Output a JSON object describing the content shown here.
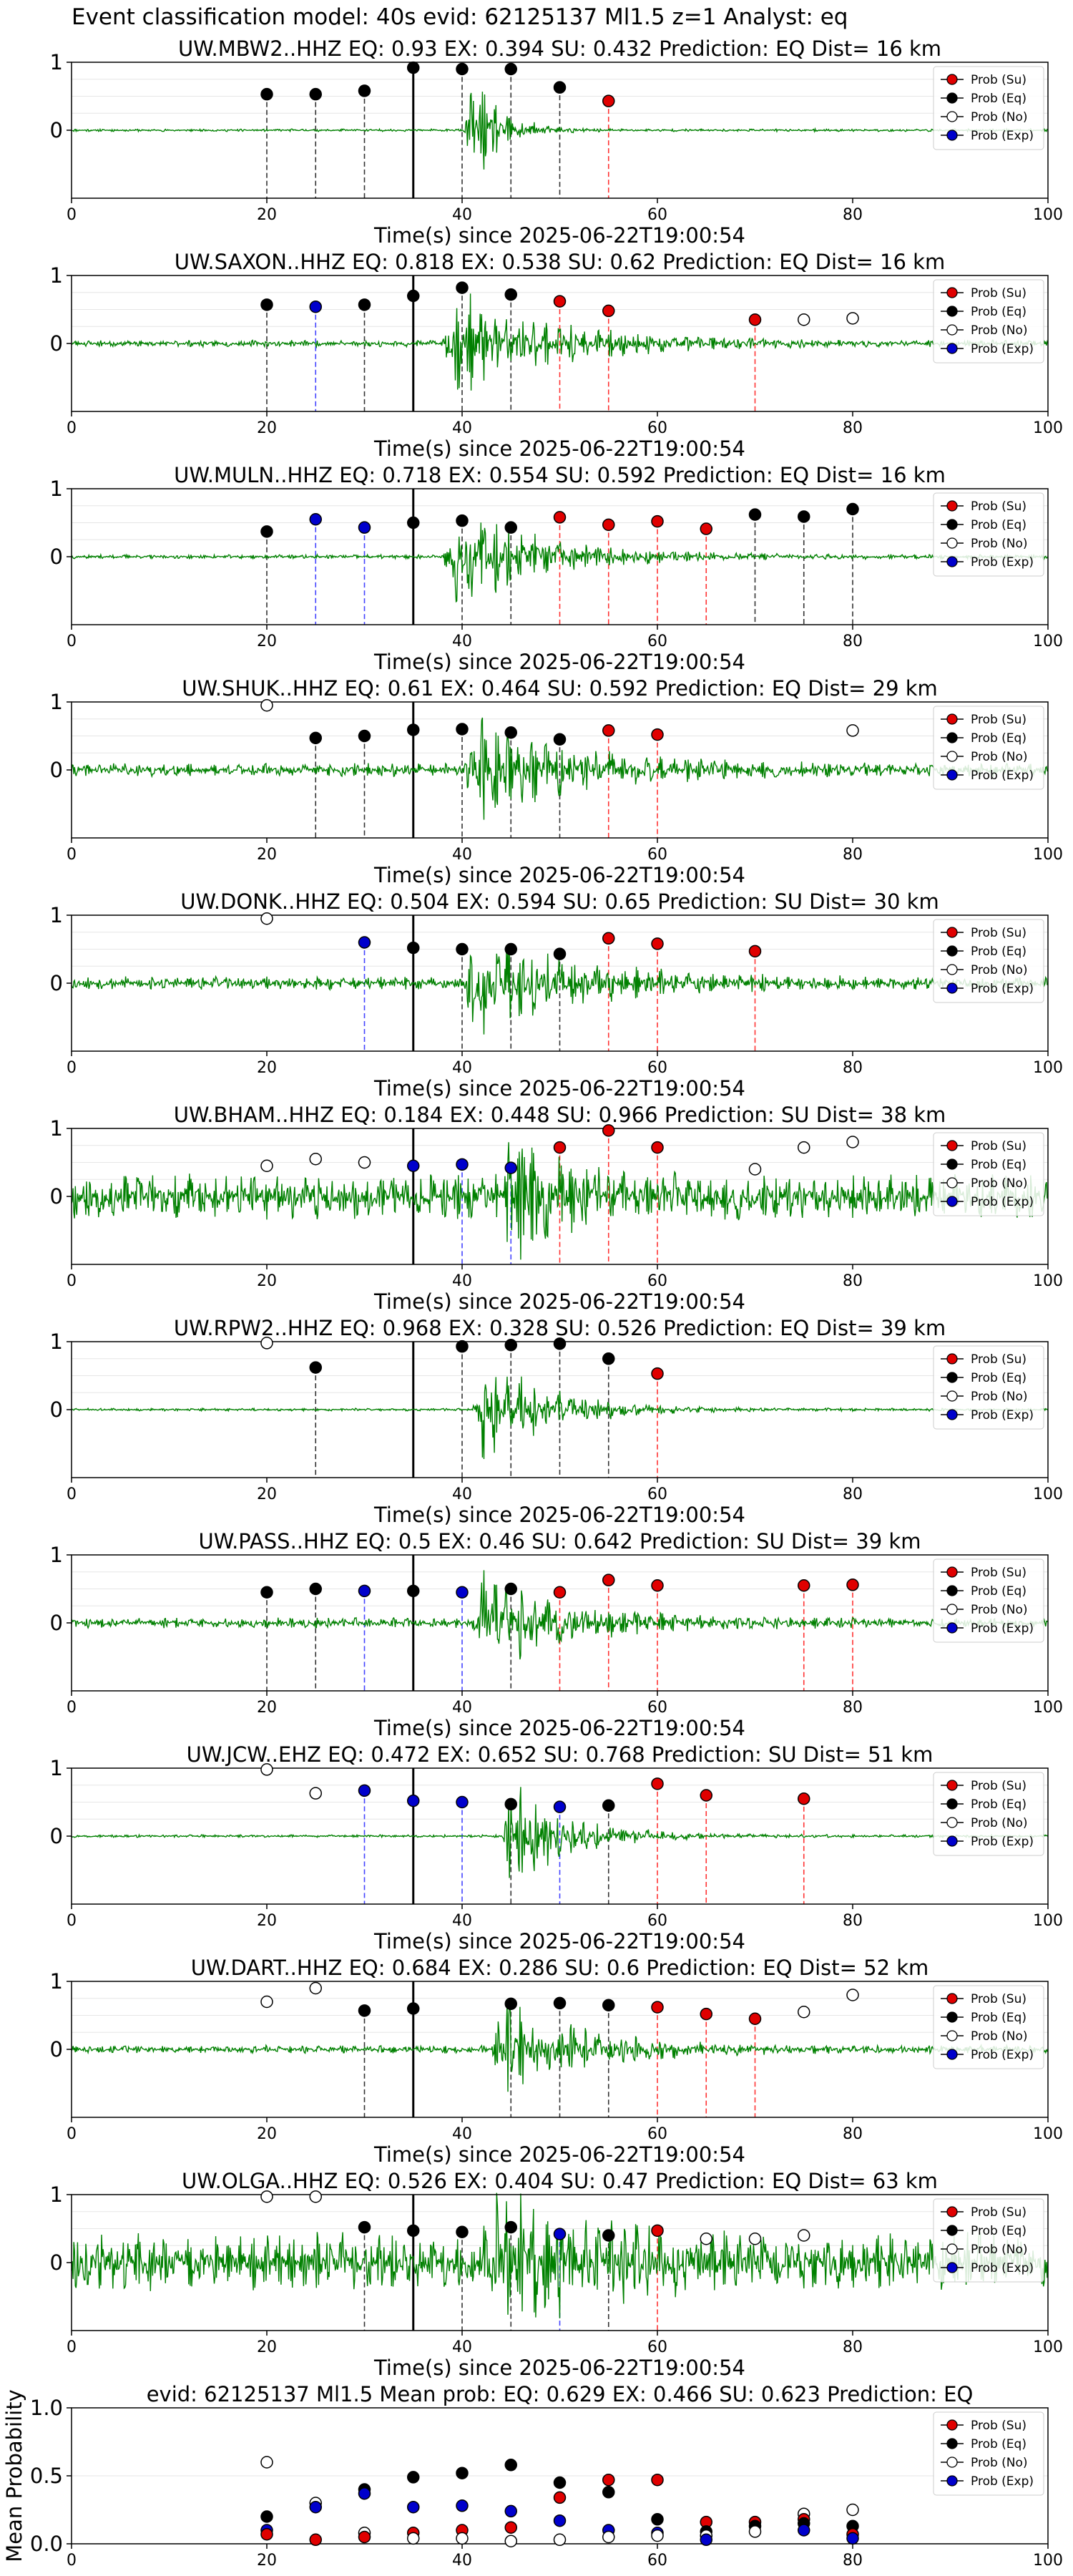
{
  "suptitle": "Event classification model: 40s evid: 62125137 Ml1.5 z=1 Analyst: eq",
  "colors": {
    "su": "#e00000",
    "eq": "#000000",
    "no": "#ffffff",
    "exp": "#0000cc",
    "trace": "#008000"
  },
  "legend_labels": [
    "Prob (Su)",
    "Prob (Eq)",
    "Prob (No)",
    "Prob (Exp)"
  ],
  "xlabel": "Time(s) since 2025-06-22T19:00:54",
  "chart_data": [
    {
      "type": "scatter",
      "title": "UW.MBW2..HHZ   EQ: 0.93  EX: 0.394  SU: 0.432   Prediction: EQ    Dist= 16 km",
      "xlim": [
        0,
        100
      ],
      "ylim": [
        -1,
        1
      ],
      "xticks": [
        0,
        20,
        40,
        60,
        80,
        100
      ],
      "yticks": [
        "1",
        "0"
      ],
      "pick": 35,
      "noise": 0.02,
      "event": [
        40,
        46
      ],
      "seed": 11,
      "points": [
        {
          "x": 20,
          "y": 0.53,
          "c": "eq"
        },
        {
          "x": 25,
          "y": 0.53,
          "c": "eq"
        },
        {
          "x": 30,
          "y": 0.58,
          "c": "eq"
        },
        {
          "x": 35,
          "y": 0.92,
          "c": "eq"
        },
        {
          "x": 40,
          "y": 0.9,
          "c": "eq"
        },
        {
          "x": 45,
          "y": 0.9,
          "c": "eq"
        },
        {
          "x": 50,
          "y": 0.63,
          "c": "eq"
        },
        {
          "x": 55,
          "y": 0.43,
          "c": "su"
        }
      ]
    },
    {
      "type": "scatter",
      "title": "UW.SAXON..HHZ   EQ: 0.818  EX: 0.538  SU: 0.62   Prediction: EQ    Dist= 16 km",
      "xlim": [
        0,
        100
      ],
      "ylim": [
        -1,
        1
      ],
      "xticks": [
        0,
        20,
        40,
        60,
        80,
        100
      ],
      "yticks": [
        "1",
        "0"
      ],
      "pick": 35,
      "noise": 0.05,
      "event": [
        38,
        60
      ],
      "seed": 23,
      "points": [
        {
          "x": 20,
          "y": 0.57,
          "c": "eq"
        },
        {
          "x": 25,
          "y": 0.54,
          "c": "exp"
        },
        {
          "x": 30,
          "y": 0.57,
          "c": "eq"
        },
        {
          "x": 35,
          "y": 0.7,
          "c": "eq"
        },
        {
          "x": 40,
          "y": 0.82,
          "c": "eq"
        },
        {
          "x": 45,
          "y": 0.72,
          "c": "eq"
        },
        {
          "x": 50,
          "y": 0.62,
          "c": "su"
        },
        {
          "x": 55,
          "y": 0.48,
          "c": "su"
        },
        {
          "x": 70,
          "y": 0.35,
          "c": "su"
        },
        {
          "x": 75,
          "y": 0.35,
          "c": "no"
        },
        {
          "x": 80,
          "y": 0.37,
          "c": "no"
        }
      ]
    },
    {
      "type": "scatter",
      "title": "UW.MULN..HHZ   EQ: 0.718  EX: 0.554  SU: 0.592   Prediction: EQ    Dist= 16 km",
      "xlim": [
        0,
        100
      ],
      "ylim": [
        -1,
        1
      ],
      "xticks": [
        0,
        20,
        40,
        60,
        80,
        100
      ],
      "yticks": [
        "1",
        "0"
      ],
      "pick": 35,
      "noise": 0.03,
      "event": [
        38,
        58
      ],
      "seed": 37,
      "points": [
        {
          "x": 20,
          "y": 0.37,
          "c": "eq"
        },
        {
          "x": 25,
          "y": 0.55,
          "c": "exp"
        },
        {
          "x": 30,
          "y": 0.43,
          "c": "exp"
        },
        {
          "x": 35,
          "y": 0.5,
          "c": "eq"
        },
        {
          "x": 40,
          "y": 0.53,
          "c": "eq"
        },
        {
          "x": 45,
          "y": 0.43,
          "c": "eq"
        },
        {
          "x": 50,
          "y": 0.58,
          "c": "su"
        },
        {
          "x": 55,
          "y": 0.47,
          "c": "su"
        },
        {
          "x": 60,
          "y": 0.52,
          "c": "su"
        },
        {
          "x": 65,
          "y": 0.41,
          "c": "su"
        },
        {
          "x": 70,
          "y": 0.62,
          "c": "eq"
        },
        {
          "x": 75,
          "y": 0.59,
          "c": "eq"
        },
        {
          "x": 80,
          "y": 0.7,
          "c": "eq"
        }
      ]
    },
    {
      "type": "scatter",
      "title": "UW.SHUK..HHZ   EQ: 0.61  EX: 0.464  SU: 0.592   Prediction: EQ    Dist= 29 km",
      "xlim": [
        0,
        100
      ],
      "ylim": [
        -1,
        1
      ],
      "xticks": [
        0,
        20,
        40,
        60,
        80,
        100
      ],
      "yticks": [
        "1",
        "0"
      ],
      "pick": 35,
      "noise": 0.1,
      "event": [
        40,
        62
      ],
      "seed": 41,
      "points": [
        {
          "x": 20,
          "y": 0.95,
          "c": "no"
        },
        {
          "x": 25,
          "y": 0.47,
          "c": "eq"
        },
        {
          "x": 30,
          "y": 0.5,
          "c": "eq"
        },
        {
          "x": 35,
          "y": 0.59,
          "c": "eq"
        },
        {
          "x": 40,
          "y": 0.6,
          "c": "eq"
        },
        {
          "x": 45,
          "y": 0.55,
          "c": "eq"
        },
        {
          "x": 50,
          "y": 0.45,
          "c": "eq"
        },
        {
          "x": 55,
          "y": 0.58,
          "c": "su"
        },
        {
          "x": 60,
          "y": 0.52,
          "c": "su"
        },
        {
          "x": 80,
          "y": 0.58,
          "c": "no"
        }
      ]
    },
    {
      "type": "scatter",
      "title": "UW.DONK..HHZ   EQ: 0.504  EX: 0.594  SU: 0.65   Prediction: SU    Dist= 30 km",
      "xlim": [
        0,
        100
      ],
      "ylim": [
        -1,
        1
      ],
      "xticks": [
        0,
        20,
        40,
        60,
        80,
        100
      ],
      "yticks": [
        "1",
        "0"
      ],
      "pick": 35,
      "noise": 0.1,
      "event": [
        40,
        62
      ],
      "seed": 53,
      "points": [
        {
          "x": 20,
          "y": 0.95,
          "c": "no"
        },
        {
          "x": 30,
          "y": 0.6,
          "c": "exp"
        },
        {
          "x": 35,
          "y": 0.52,
          "c": "eq"
        },
        {
          "x": 40,
          "y": 0.5,
          "c": "eq"
        },
        {
          "x": 45,
          "y": 0.5,
          "c": "eq"
        },
        {
          "x": 50,
          "y": 0.43,
          "c": "eq"
        },
        {
          "x": 55,
          "y": 0.66,
          "c": "su"
        },
        {
          "x": 60,
          "y": 0.58,
          "c": "su"
        },
        {
          "x": 70,
          "y": 0.47,
          "c": "su"
        }
      ]
    },
    {
      "type": "scatter",
      "title": "UW.BHAM..HHZ   EQ: 0.184  EX: 0.448  SU: 0.966   Prediction: SU    Dist= 38 km",
      "xlim": [
        0,
        100
      ],
      "ylim": [
        -1,
        1
      ],
      "xticks": [
        0,
        20,
        40,
        60,
        80,
        100
      ],
      "yticks": [
        "1",
        "0"
      ],
      "pick": 35,
      "noise": 0.35,
      "event": [
        44,
        54
      ],
      "seed": 67,
      "points": [
        {
          "x": 20,
          "y": 0.45,
          "c": "no"
        },
        {
          "x": 25,
          "y": 0.55,
          "c": "no"
        },
        {
          "x": 30,
          "y": 0.5,
          "c": "no"
        },
        {
          "x": 35,
          "y": 0.45,
          "c": "exp"
        },
        {
          "x": 40,
          "y": 0.47,
          "c": "exp"
        },
        {
          "x": 45,
          "y": 0.42,
          "c": "exp"
        },
        {
          "x": 50,
          "y": 0.72,
          "c": "su"
        },
        {
          "x": 55,
          "y": 0.97,
          "c": "su"
        },
        {
          "x": 60,
          "y": 0.72,
          "c": "su"
        },
        {
          "x": 70,
          "y": 0.4,
          "c": "no"
        },
        {
          "x": 75,
          "y": 0.72,
          "c": "no"
        },
        {
          "x": 80,
          "y": 0.8,
          "c": "no"
        }
      ]
    },
    {
      "type": "scatter",
      "title": "UW.RPW2..HHZ   EQ: 0.968  EX: 0.328  SU: 0.526   Prediction: EQ    Dist= 39 km",
      "xlim": [
        0,
        100
      ],
      "ylim": [
        -1,
        1
      ],
      "xticks": [
        0,
        20,
        40,
        60,
        80,
        100
      ],
      "yticks": [
        "1",
        "0"
      ],
      "pick": 35,
      "noise": 0.02,
      "event": [
        41,
        56
      ],
      "seed": 71,
      "points": [
        {
          "x": 20,
          "y": 0.98,
          "c": "no"
        },
        {
          "x": 25,
          "y": 0.62,
          "c": "eq"
        },
        {
          "x": 40,
          "y": 0.93,
          "c": "eq"
        },
        {
          "x": 45,
          "y": 0.95,
          "c": "eq"
        },
        {
          "x": 50,
          "y": 0.97,
          "c": "eq"
        },
        {
          "x": 55,
          "y": 0.75,
          "c": "eq"
        },
        {
          "x": 60,
          "y": 0.53,
          "c": "su"
        }
      ]
    },
    {
      "type": "scatter",
      "title": "UW.PASS..HHZ   EQ: 0.5  EX: 0.46  SU: 0.642   Prediction: SU    Dist= 39 km",
      "xlim": [
        0,
        100
      ],
      "ylim": [
        -1,
        1
      ],
      "xticks": [
        0,
        20,
        40,
        60,
        80,
        100
      ],
      "yticks": [
        "1",
        "0"
      ],
      "pick": 35,
      "noise": 0.08,
      "event": [
        41,
        58
      ],
      "seed": 83,
      "points": [
        {
          "x": 20,
          "y": 0.45,
          "c": "eq"
        },
        {
          "x": 25,
          "y": 0.5,
          "c": "eq"
        },
        {
          "x": 30,
          "y": 0.47,
          "c": "exp"
        },
        {
          "x": 35,
          "y": 0.47,
          "c": "eq"
        },
        {
          "x": 40,
          "y": 0.45,
          "c": "exp"
        },
        {
          "x": 45,
          "y": 0.5,
          "c": "eq"
        },
        {
          "x": 50,
          "y": 0.45,
          "c": "su"
        },
        {
          "x": 55,
          "y": 0.63,
          "c": "su"
        },
        {
          "x": 60,
          "y": 0.55,
          "c": "su"
        },
        {
          "x": 75,
          "y": 0.55,
          "c": "su"
        },
        {
          "x": 80,
          "y": 0.56,
          "c": "su"
        }
      ]
    },
    {
      "type": "scatter",
      "title": "UW.JCW..EHZ   EQ: 0.472  EX: 0.652  SU: 0.768   Prediction: SU    Dist= 51 km",
      "xlim": [
        0,
        100
      ],
      "ylim": [
        -1,
        1
      ],
      "xticks": [
        0,
        20,
        40,
        60,
        80,
        100
      ],
      "yticks": [
        "1",
        "0"
      ],
      "pick": 35,
      "noise": 0.02,
      "event": [
        44,
        57
      ],
      "seed": 97,
      "points": [
        {
          "x": 20,
          "y": 0.98,
          "c": "no"
        },
        {
          "x": 25,
          "y": 0.63,
          "c": "no"
        },
        {
          "x": 30,
          "y": 0.67,
          "c": "exp"
        },
        {
          "x": 35,
          "y": 0.52,
          "c": "exp"
        },
        {
          "x": 40,
          "y": 0.5,
          "c": "exp"
        },
        {
          "x": 45,
          "y": 0.47,
          "c": "eq"
        },
        {
          "x": 50,
          "y": 0.43,
          "c": "exp"
        },
        {
          "x": 55,
          "y": 0.45,
          "c": "eq"
        },
        {
          "x": 60,
          "y": 0.77,
          "c": "su"
        },
        {
          "x": 65,
          "y": 0.6,
          "c": "su"
        },
        {
          "x": 75,
          "y": 0.55,
          "c": "su"
        }
      ]
    },
    {
      "type": "scatter",
      "title": "UW.DART..HHZ   EQ: 0.684  EX: 0.286  SU: 0.6   Prediction: EQ    Dist= 52 km",
      "xlim": [
        0,
        100
      ],
      "ylim": [
        -1,
        1
      ],
      "xticks": [
        0,
        20,
        40,
        60,
        80,
        100
      ],
      "yticks": [
        "1",
        "0"
      ],
      "pick": 35,
      "noise": 0.06,
      "event": [
        43,
        60
      ],
      "seed": 101,
      "points": [
        {
          "x": 20,
          "y": 0.7,
          "c": "no"
        },
        {
          "x": 25,
          "y": 0.9,
          "c": "no"
        },
        {
          "x": 30,
          "y": 0.57,
          "c": "eq"
        },
        {
          "x": 35,
          "y": 0.6,
          "c": "eq"
        },
        {
          "x": 45,
          "y": 0.67,
          "c": "eq"
        },
        {
          "x": 50,
          "y": 0.68,
          "c": "eq"
        },
        {
          "x": 55,
          "y": 0.65,
          "c": "eq"
        },
        {
          "x": 60,
          "y": 0.62,
          "c": "su"
        },
        {
          "x": 65,
          "y": 0.52,
          "c": "su"
        },
        {
          "x": 70,
          "y": 0.45,
          "c": "su"
        },
        {
          "x": 75,
          "y": 0.55,
          "c": "no"
        },
        {
          "x": 80,
          "y": 0.8,
          "c": "no"
        }
      ]
    },
    {
      "type": "scatter",
      "title": "UW.OLGA..HHZ   EQ: 0.526  EX: 0.404  SU: 0.47   Prediction: EQ    Dist= 63 km",
      "xlim": [
        0,
        100
      ],
      "ylim": [
        -1,
        1
      ],
      "xticks": [
        0,
        20,
        40,
        60,
        80,
        100
      ],
      "yticks": [
        "1",
        "0"
      ],
      "pick": 35,
      "noise": 0.45,
      "event": [
        42,
        62
      ],
      "seed": 113,
      "points": [
        {
          "x": 20,
          "y": 0.97,
          "c": "no"
        },
        {
          "x": 25,
          "y": 0.97,
          "c": "no"
        },
        {
          "x": 30,
          "y": 0.52,
          "c": "eq"
        },
        {
          "x": 35,
          "y": 0.47,
          "c": "eq"
        },
        {
          "x": 40,
          "y": 0.45,
          "c": "eq"
        },
        {
          "x": 45,
          "y": 0.52,
          "c": "eq"
        },
        {
          "x": 50,
          "y": 0.42,
          "c": "exp"
        },
        {
          "x": 55,
          "y": 0.4,
          "c": "eq"
        },
        {
          "x": 60,
          "y": 0.47,
          "c": "su"
        },
        {
          "x": 65,
          "y": 0.35,
          "c": "no"
        },
        {
          "x": 70,
          "y": 0.35,
          "c": "no"
        },
        {
          "x": 75,
          "y": 0.4,
          "c": "no"
        }
      ]
    },
    {
      "type": "scatter",
      "title": "evid: 62125137  Ml1.5   Mean prob:   EQ: 0.629  EX: 0.466  SU: 0.623   Prediction: EQ",
      "ylabel": "Mean Probability",
      "xlim": [
        0,
        100
      ],
      "ylim": [
        0,
        1
      ],
      "xticks": [
        0,
        20,
        40,
        60,
        80,
        100
      ],
      "yticks": [
        "1.0",
        "0.5",
        "0.0"
      ],
      "summary": true,
      "points": [
        {
          "x": 20,
          "y": 0.6,
          "c": "no"
        },
        {
          "x": 20,
          "y": 0.2,
          "c": "eq"
        },
        {
          "x": 20,
          "y": 0.1,
          "c": "exp"
        },
        {
          "x": 20,
          "y": 0.07,
          "c": "su"
        },
        {
          "x": 25,
          "y": 0.3,
          "c": "no"
        },
        {
          "x": 25,
          "y": 0.27,
          "c": "exp"
        },
        {
          "x": 25,
          "y": 0.03,
          "c": "su"
        },
        {
          "x": 30,
          "y": 0.4,
          "c": "eq"
        },
        {
          "x": 30,
          "y": 0.37,
          "c": "exp"
        },
        {
          "x": 30,
          "y": 0.08,
          "c": "no"
        },
        {
          "x": 30,
          "y": 0.05,
          "c": "su"
        },
        {
          "x": 35,
          "y": 0.49,
          "c": "eq"
        },
        {
          "x": 35,
          "y": 0.27,
          "c": "exp"
        },
        {
          "x": 35,
          "y": 0.08,
          "c": "su"
        },
        {
          "x": 35,
          "y": 0.04,
          "c": "no"
        },
        {
          "x": 40,
          "y": 0.52,
          "c": "eq"
        },
        {
          "x": 40,
          "y": 0.28,
          "c": "exp"
        },
        {
          "x": 40,
          "y": 0.1,
          "c": "su"
        },
        {
          "x": 40,
          "y": 0.04,
          "c": "no"
        },
        {
          "x": 45,
          "y": 0.58,
          "c": "eq"
        },
        {
          "x": 45,
          "y": 0.24,
          "c": "exp"
        },
        {
          "x": 45,
          "y": 0.12,
          "c": "su"
        },
        {
          "x": 45,
          "y": 0.02,
          "c": "no"
        },
        {
          "x": 50,
          "y": 0.45,
          "c": "eq"
        },
        {
          "x": 50,
          "y": 0.34,
          "c": "su"
        },
        {
          "x": 50,
          "y": 0.17,
          "c": "exp"
        },
        {
          "x": 50,
          "y": 0.03,
          "c": "no"
        },
        {
          "x": 55,
          "y": 0.47,
          "c": "su"
        },
        {
          "x": 55,
          "y": 0.38,
          "c": "eq"
        },
        {
          "x": 55,
          "y": 0.1,
          "c": "exp"
        },
        {
          "x": 55,
          "y": 0.05,
          "c": "no"
        },
        {
          "x": 60,
          "y": 0.47,
          "c": "su"
        },
        {
          "x": 60,
          "y": 0.18,
          "c": "eq"
        },
        {
          "x": 60,
          "y": 0.08,
          "c": "exp"
        },
        {
          "x": 60,
          "y": 0.06,
          "c": "no"
        },
        {
          "x": 65,
          "y": 0.16,
          "c": "su"
        },
        {
          "x": 65,
          "y": 0.09,
          "c": "eq"
        },
        {
          "x": 65,
          "y": 0.06,
          "c": "no"
        },
        {
          "x": 65,
          "y": 0.03,
          "c": "exp"
        },
        {
          "x": 70,
          "y": 0.16,
          "c": "su"
        },
        {
          "x": 70,
          "y": 0.13,
          "c": "eq"
        },
        {
          "x": 70,
          "y": 0.09,
          "c": "no"
        },
        {
          "x": 75,
          "y": 0.22,
          "c": "no"
        },
        {
          "x": 75,
          "y": 0.18,
          "c": "su"
        },
        {
          "x": 75,
          "y": 0.15,
          "c": "eq"
        },
        {
          "x": 75,
          "y": 0.1,
          "c": "exp"
        },
        {
          "x": 80,
          "y": 0.25,
          "c": "no"
        },
        {
          "x": 80,
          "y": 0.13,
          "c": "eq"
        },
        {
          "x": 80,
          "y": 0.07,
          "c": "su"
        },
        {
          "x": 80,
          "y": 0.04,
          "c": "exp"
        }
      ]
    }
  ]
}
